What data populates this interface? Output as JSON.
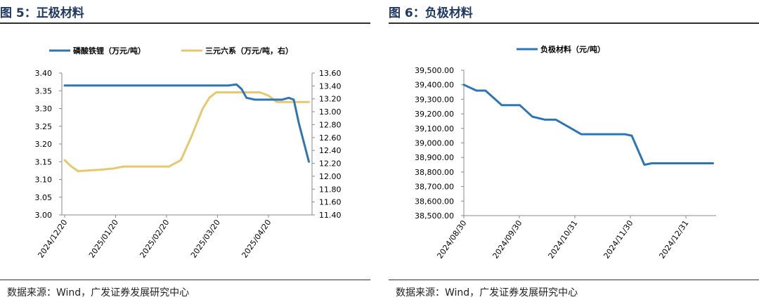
{
  "figures": [
    {
      "title": "图 5：正极材料",
      "source": "数据来源：Wind，广发证券发展研究中心",
      "chart_data": {
        "type": "line",
        "title": "",
        "xlabel": "",
        "ylabel": "",
        "x_tick_labels": [
          "2024/12/20",
          "2025/01/20",
          "2025/02/20",
          "2025/03/20",
          "2025/04/20"
        ],
        "ylim_left": [
          3.0,
          3.4
        ],
        "yticks_left": [
          "3.40",
          "3.35",
          "3.30",
          "3.25",
          "3.20",
          "3.15",
          "3.10",
          "3.05",
          "3.00"
        ],
        "ylim_right": [
          11.4,
          13.6
        ],
        "yticks_right": [
          "13.60",
          "13.40",
          "13.20",
          "13.00",
          "12.80",
          "12.60",
          "12.40",
          "12.20",
          "12.00",
          "11.80",
          "11.60",
          "11.40"
        ],
        "legend_position": "top",
        "grid": false,
        "series": [
          {
            "name": "磷酸铁锂（万元/吨）",
            "axis": "left",
            "color": "#2e75b6",
            "x": [
              "2024-12-20",
              "2025-02-18",
              "2025-03-27",
              "2025-04-01",
              "2025-04-04",
              "2025-04-07",
              "2025-04-12",
              "2025-04-28",
              "2025-05-02",
              "2025-05-05",
              "2025-05-08",
              "2025-05-14"
            ],
            "values": [
              3.365,
              3.365,
              3.365,
              3.368,
              3.355,
              3.33,
              3.325,
              3.325,
              3.33,
              3.325,
              3.26,
              3.15
            ]
          },
          {
            "name": "三元六系（万元/吨，右）",
            "axis": "right",
            "color": "#e6c86e",
            "x": [
              "2024-12-20",
              "2024-12-24",
              "2024-12-28",
              "2025-01-10",
              "2025-01-18",
              "2025-01-24",
              "2025-02-05",
              "2025-02-15",
              "2025-02-20",
              "2025-02-27",
              "2025-03-05",
              "2025-03-12",
              "2025-03-16",
              "2025-03-20",
              "2025-03-24",
              "2025-04-05",
              "2025-04-15",
              "2025-04-20",
              "2025-04-25",
              "2025-05-01",
              "2025-05-14"
            ],
            "values": [
              12.25,
              12.15,
              12.08,
              12.1,
              12.12,
              12.15,
              12.15,
              12.15,
              12.15,
              12.25,
              12.6,
              13.05,
              13.22,
              13.3,
              13.3,
              13.3,
              13.3,
              13.25,
              13.15,
              13.15,
              13.15
            ]
          }
        ]
      }
    },
    {
      "title": "图 6：负极材料",
      "source": "数据来源：Wind，广发证券发展研究中心",
      "chart_data": {
        "type": "line",
        "title": "",
        "xlabel": "",
        "ylabel": "",
        "x_tick_labels": [
          "2024/08/30",
          "2024/09/30",
          "2024/10/31",
          "2024/11/30",
          "2024/12/31"
        ],
        "ylim": [
          38500,
          39500
        ],
        "yticks": [
          "39,500.00",
          "39,400.00",
          "39,300.00",
          "39,200.00",
          "39,100.00",
          "39,000.00",
          "38,900.00",
          "38,800.00",
          "38,700.00",
          "38,600.00",
          "38,500.00"
        ],
        "legend_position": "top",
        "grid": false,
        "series": [
          {
            "name": "负极材料（元/吨）",
            "color": "#2e75b6",
            "x": [
              "2024-08-30",
              "2024-09-06",
              "2024-09-11",
              "2024-09-20",
              "2024-09-30",
              "2024-10-07",
              "2024-10-14",
              "2024-10-20",
              "2024-10-27",
              "2024-11-03",
              "2024-11-10",
              "2024-11-20",
              "2024-11-27",
              "2024-12-01",
              "2024-12-08",
              "2024-12-12",
              "2024-12-31",
              "2025-01-15"
            ],
            "values": [
              39400,
              39360,
              39360,
              39260,
              39260,
              39180,
              39160,
              39160,
              39110,
              39060,
              39060,
              39060,
              39060,
              39050,
              38850,
              38860,
              38860,
              38860
            ]
          }
        ]
      }
    }
  ]
}
